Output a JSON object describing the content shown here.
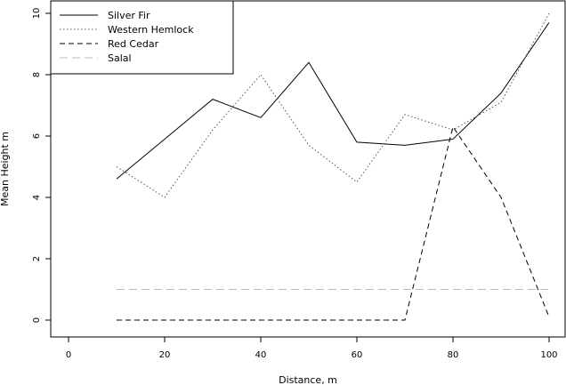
{
  "chart_data": {
    "type": "line",
    "xlabel": "Distance, m",
    "ylabel": "Mean Height m",
    "xlim": [
      0,
      100
    ],
    "ylim": [
      0,
      10
    ],
    "xticks": [
      0,
      20,
      40,
      60,
      80,
      100
    ],
    "yticks": [
      0,
      2,
      4,
      6,
      8,
      10
    ],
    "grid": false,
    "legend_position": "top-left",
    "x": [
      10,
      20,
      30,
      40,
      50,
      60,
      70,
      80,
      90,
      100
    ],
    "series": [
      {
        "name": "Silver Fir",
        "values": [
          4.6,
          5.9,
          7.2,
          6.6,
          8.4,
          5.8,
          5.7,
          5.9,
          7.4,
          9.7
        ],
        "color": "#000000",
        "dash": "solid"
      },
      {
        "name": "Western Hemlock",
        "values": [
          5.0,
          4.0,
          6.2,
          8.0,
          5.7,
          4.5,
          6.7,
          6.2,
          7.1,
          10.0
        ],
        "color": "#555555",
        "dash": "dotted"
      },
      {
        "name": "Red Cedar",
        "values": [
          0,
          0,
          0,
          0,
          0,
          0,
          0,
          6.3,
          4.0,
          0.1
        ],
        "color": "#000000",
        "dash": "dashed"
      },
      {
        "name": "Salal",
        "values": [
          1,
          1,
          1,
          1,
          1,
          1,
          1,
          1,
          1,
          1
        ],
        "color": "#bbbbbb",
        "dash": "longdash"
      }
    ]
  }
}
